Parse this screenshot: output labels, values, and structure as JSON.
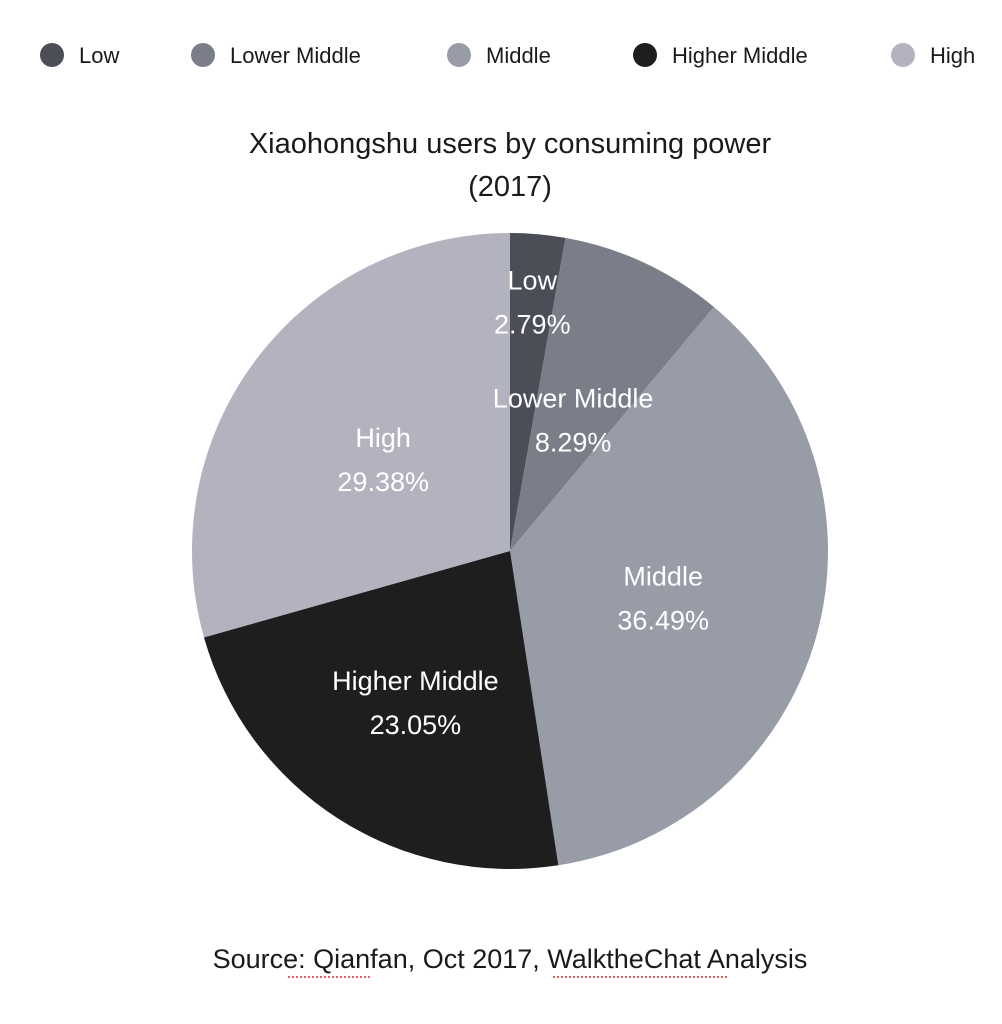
{
  "chart_data": {
    "type": "pie",
    "title_lines": [
      "Xiaohongshu users by consuming power",
      "(2017)"
    ],
    "slices": [
      {
        "label": "Low",
        "value": 2.79,
        "display": "2.79%",
        "color": "#4b4d57"
      },
      {
        "label": "Lower Middle",
        "value": 8.29,
        "display": "8.29%",
        "color": "#7a7e88"
      },
      {
        "label": "Middle",
        "value": 36.49,
        "display": "36.49%",
        "color": "#979ca6"
      },
      {
        "label": "Higher Middle",
        "value": 23.05,
        "display": "23.05%",
        "color": "#1e1e1f"
      },
      {
        "label": "High",
        "value": 29.38,
        "display": "29.38%",
        "color": "#b3b3bf"
      }
    ],
    "start": "12 o'clock",
    "direction": "clockwise",
    "legend_position": "top",
    "label_color": "#ffffff"
  },
  "source": {
    "prefix": "Source: ",
    "name1": "Qianfan",
    "middle": ", Oct 2017, ",
    "name2": "WalktheChat",
    "suffix": " Analysis"
  }
}
